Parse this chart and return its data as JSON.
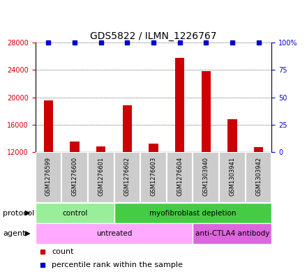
{
  "title": "GDS5822 / ILMN_1226767",
  "samples": [
    "GSM1276599",
    "GSM1276600",
    "GSM1276601",
    "GSM1276602",
    "GSM1276603",
    "GSM1276604",
    "GSM1303940",
    "GSM1303941",
    "GSM1303942"
  ],
  "counts": [
    19500,
    13500,
    12800,
    18800,
    13200,
    25800,
    23800,
    16800,
    12700
  ],
  "percentiles": [
    100,
    100,
    100,
    100,
    100,
    100,
    100,
    100,
    100
  ],
  "ylim_left": [
    12000,
    28000
  ],
  "ylim_right": [
    0,
    100
  ],
  "yticks_left": [
    12000,
    16000,
    20000,
    24000,
    28000
  ],
  "yticks_right": [
    0,
    25,
    50,
    75,
    100
  ],
  "bar_color": "#cc0000",
  "dot_color": "#0000cc",
  "bar_bottom": 12000,
  "protocol_groups": [
    {
      "label": "control",
      "start": 0,
      "end": 3,
      "color": "#99ee99"
    },
    {
      "label": "myofibroblast depletion",
      "start": 3,
      "end": 9,
      "color": "#44cc44"
    }
  ],
  "agent_groups": [
    {
      "label": "untreated",
      "start": 0,
      "end": 6,
      "color": "#ffaaff"
    },
    {
      "label": "anti-CTLA4 antibody",
      "start": 6,
      "end": 9,
      "color": "#dd66dd"
    }
  ],
  "protocol_label": "protocol",
  "agent_label": "agent",
  "legend_count_label": "count",
  "legend_percentile_label": "percentile rank within the sample",
  "grid_color": "#000000",
  "background_color": "#ffffff",
  "sample_box_color": "#cccccc",
  "title_fontsize": 10,
  "tick_fontsize": 7,
  "label_fontsize": 8,
  "bar_width": 0.35
}
